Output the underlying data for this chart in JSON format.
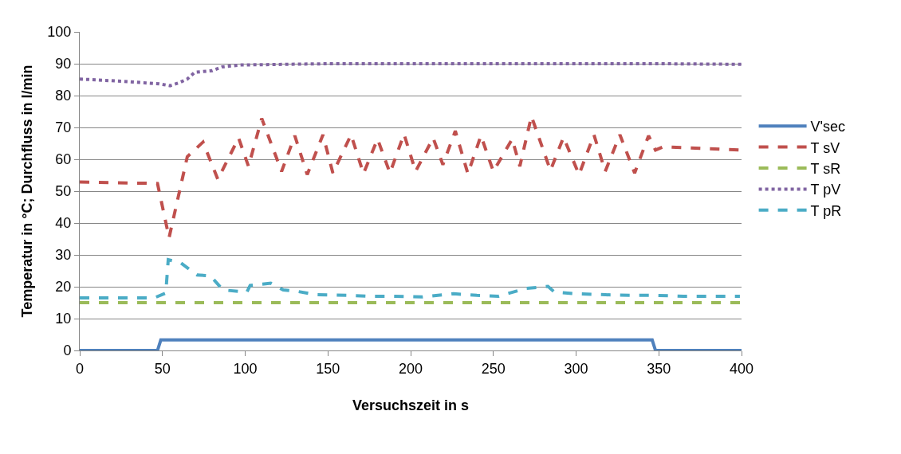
{
  "chart_data": {
    "type": "line",
    "xlabel": "Versuchszeit in s",
    "ylabel": "Temperatur in °C; Durchfluss in l/min",
    "xlim": [
      0,
      400
    ],
    "xticks": [
      0,
      50,
      100,
      150,
      200,
      250,
      300,
      350,
      400
    ],
    "ylim": [
      0,
      100
    ],
    "yticks": [
      0,
      10,
      20,
      30,
      40,
      50,
      60,
      70,
      80,
      90,
      100
    ],
    "grid": "y",
    "legend": "right",
    "marker": "none",
    "series": [
      {
        "name": "V'sec",
        "color": "#4f81bd",
        "line_style": "solid",
        "x": [
          0,
          47,
          49,
          100,
          200,
          300,
          346,
          348,
          400
        ],
        "values": [
          0,
          0,
          3.3,
          3.3,
          3.3,
          3.3,
          3.3,
          0,
          0
        ]
      },
      {
        "name": "T sV",
        "color": "#c0504d",
        "line_style": "dashed",
        "x": [
          0,
          47,
          54,
          65,
          74.5,
          83.5,
          96,
          102,
          110,
          122,
          130,
          137.5,
          147,
          153,
          164,
          171.5,
          180,
          187.5,
          196,
          203,
          213.6,
          219.5,
          227,
          234.6,
          242.5,
          250,
          261.4,
          266,
          273,
          284.5,
          292.4,
          301.8,
          310.8,
          317.6,
          326.5,
          335.4,
          343.8,
          348,
          352.7,
          400
        ],
        "values": [
          52.9,
          52.4,
          35.4,
          60.8,
          65.4,
          53.7,
          66.7,
          57.8,
          72.8,
          56.2,
          67.4,
          55.2,
          67.7,
          55.7,
          67.7,
          55.5,
          66.4,
          55.7,
          67.9,
          56.2,
          66.7,
          58.3,
          68.9,
          55.5,
          67.4,
          56.2,
          66.4,
          57.8,
          73.5,
          56.5,
          66.9,
          55.2,
          67.7,
          56.2,
          67.7,
          55.7,
          67.4,
          62.9,
          63.9,
          62.9
        ]
      },
      {
        "name": "T sR",
        "color": "#9bbb59",
        "line_style": "dashed",
        "x": [
          0,
          100,
          200,
          300,
          400
        ],
        "values": [
          15,
          15,
          15,
          15,
          15
        ]
      },
      {
        "name": "T pV",
        "color": "#8064a2",
        "line_style": "dotted",
        "x": [
          0,
          25,
          48,
          54.6,
          60,
          65,
          69.5,
          80,
          86,
          97,
          150,
          200,
          250,
          300,
          350,
          400
        ],
        "values": [
          85.2,
          84.5,
          83.7,
          83.1,
          84,
          85.2,
          87.3,
          87.8,
          89,
          89.6,
          90,
          90,
          90,
          90,
          90,
          89.8
        ]
      },
      {
        "name": "T pR",
        "color": "#4bacc6",
        "line_style": "dashed",
        "x": [
          0,
          45,
          52,
          53.5,
          61,
          71,
          79,
          86.6,
          101,
          103,
          115.5,
          123,
          132,
          143,
          163,
          176,
          189,
          207,
          226,
          240,
          253,
          270,
          283,
          287,
          300,
          317.6,
          332,
          347.5,
          365,
          383,
          399
        ],
        "values": [
          16.5,
          16.5,
          18,
          28.5,
          27.5,
          23.7,
          23.4,
          19,
          18.3,
          20.4,
          21.1,
          19,
          18.5,
          17.5,
          17.3,
          17,
          17,
          16.8,
          17.8,
          17.3,
          17,
          19.5,
          20.1,
          18.3,
          17.8,
          17.5,
          17.3,
          17.3,
          17,
          17,
          17
        ]
      }
    ]
  }
}
